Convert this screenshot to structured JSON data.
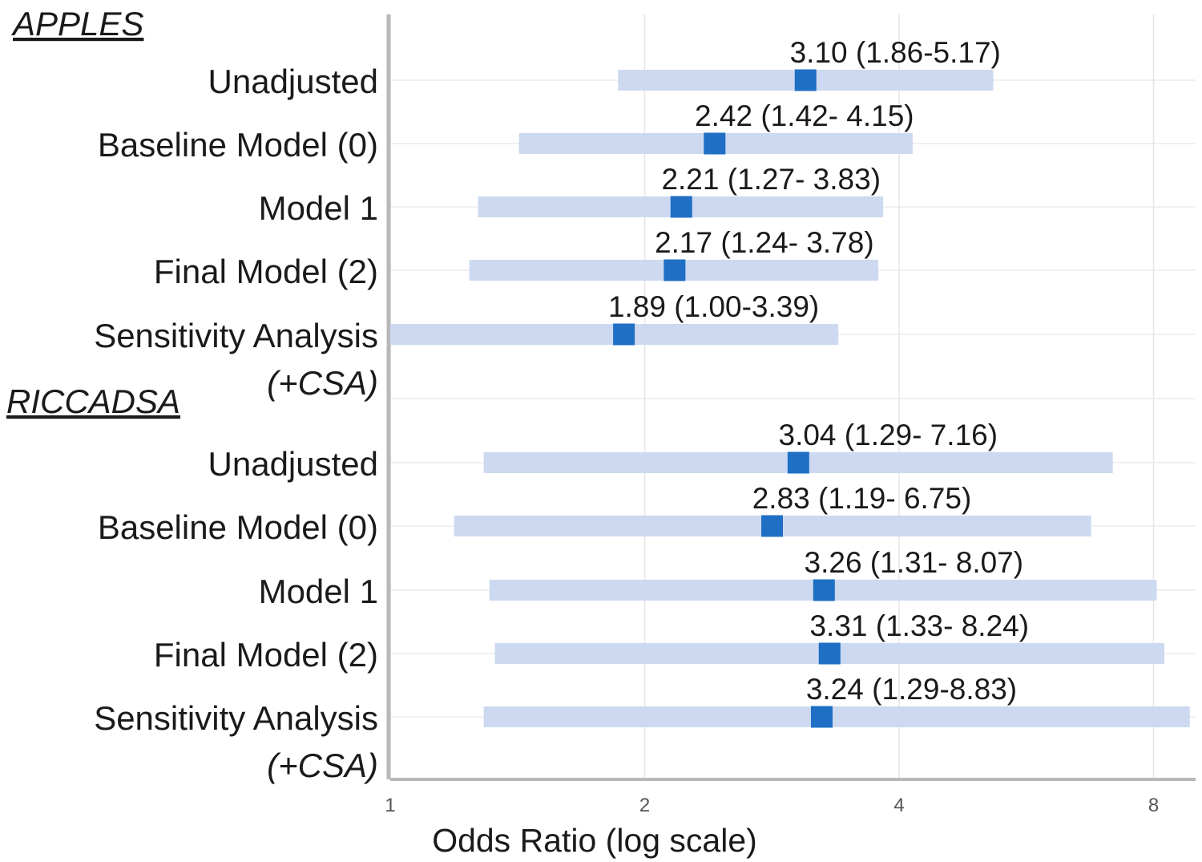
{
  "chart_data": {
    "type": "forest",
    "xscale": "log2",
    "xlim": [
      1,
      8.5
    ],
    "xticks": [
      1,
      2,
      4,
      8
    ],
    "xtick_labels": [
      "1",
      "2",
      "4",
      "8"
    ],
    "xlabel": "Odds Ratio (log scale)",
    "grid": true,
    "colors": {
      "point": "#1f6fc5",
      "ci_bar": "#ccd9f0",
      "grid": "#e6e6e6",
      "axis": "#b8b8b8"
    },
    "groups": [
      {
        "title": "APPLES",
        "rows": [
          {
            "label": "Unadjusted",
            "sub": "",
            "or": 3.1,
            "lo": 1.86,
            "hi": 5.17,
            "text": "3.10 (1.86-5.17)"
          },
          {
            "label": "Baseline Model (0)",
            "sub": "",
            "or": 2.42,
            "lo": 1.42,
            "hi": 4.15,
            "text": "2.42 (1.42- 4.15)"
          },
          {
            "label": "Model 1",
            "sub": "",
            "or": 2.21,
            "lo": 1.27,
            "hi": 3.83,
            "text": "2.21 (1.27- 3.83)"
          },
          {
            "label": "Final Model (2)",
            "sub": "",
            "or": 2.17,
            "lo": 1.24,
            "hi": 3.78,
            "text": "2.17 (1.24- 3.78)"
          },
          {
            "label": "Sensitivity Analysis",
            "sub": "(+CSA)",
            "or": 1.89,
            "lo": 1.0,
            "hi": 3.39,
            "text": "1.89 (1.00-3.39)"
          }
        ]
      },
      {
        "title": "RICCADSA",
        "rows": [
          {
            "label": "Unadjusted",
            "sub": "",
            "or": 3.04,
            "lo": 1.29,
            "hi": 7.16,
            "text": "3.04 (1.29- 7.16)"
          },
          {
            "label": "Baseline Model (0)",
            "sub": "",
            "or": 2.83,
            "lo": 1.19,
            "hi": 6.75,
            "text": "2.83 (1.19- 6.75)"
          },
          {
            "label": "Model 1",
            "sub": "",
            "or": 3.26,
            "lo": 1.31,
            "hi": 8.07,
            "text": "3.26 (1.31- 8.07)"
          },
          {
            "label": "Final Model (2)",
            "sub": "",
            "or": 3.31,
            "lo": 1.33,
            "hi": 8.24,
            "text": "3.31 (1.33- 8.24)"
          },
          {
            "label": "Sensitivity Analysis",
            "sub": "(+CSA)",
            "or": 3.24,
            "lo": 1.29,
            "hi": 8.83,
            "text": "3.24 (1.29-8.83)"
          }
        ]
      }
    ]
  }
}
